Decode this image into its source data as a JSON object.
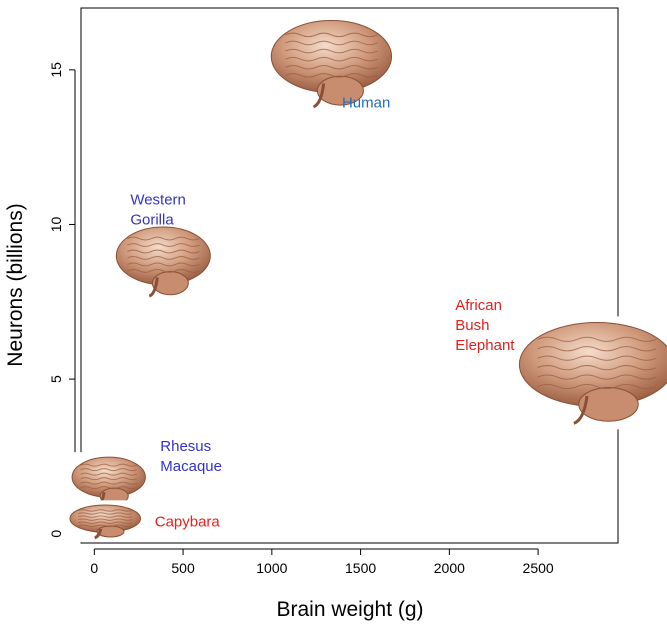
{
  "chart_data": {
    "type": "scatter",
    "title": "",
    "xlabel": "Brain weight (g)",
    "ylabel": "Neurons (billions)",
    "xlim": [
      -75,
      2950
    ],
    "ylim": [
      -0.3,
      17
    ],
    "xticks": [
      0,
      500,
      1000,
      1500,
      2000,
      2500
    ],
    "yticks": [
      0,
      5,
      10,
      15
    ],
    "grid": false,
    "points": [
      {
        "label": "Human",
        "lines": [
          "Human"
        ],
        "x": 1350,
        "y": 15.2,
        "label_color": "#1f6fbf",
        "marker": "brain-icon"
      },
      {
        "label": "Western Gorilla",
        "lines": [
          "Western",
          "Gorilla"
        ],
        "x": 400,
        "y": 8.8,
        "label_color": "#3333cc",
        "marker": "brain-icon"
      },
      {
        "label": "African Bush Elephant",
        "lines": [
          "African",
          "Bush",
          "Elephant"
        ],
        "x": 2850,
        "y": 5.2,
        "label_color": "#e8201c",
        "marker": "brain-icon"
      },
      {
        "label": "Rhesus Macaque",
        "lines": [
          "Rhesus",
          "Macaque"
        ],
        "x": 90,
        "y": 1.7,
        "label_color": "#3333cc",
        "marker": "brain-icon"
      },
      {
        "label": "Capybara",
        "lines": [
          "Capybara"
        ],
        "x": 70,
        "y": 0.4,
        "label_color": "#e8201c",
        "marker": "brain-icon"
      }
    ]
  }
}
